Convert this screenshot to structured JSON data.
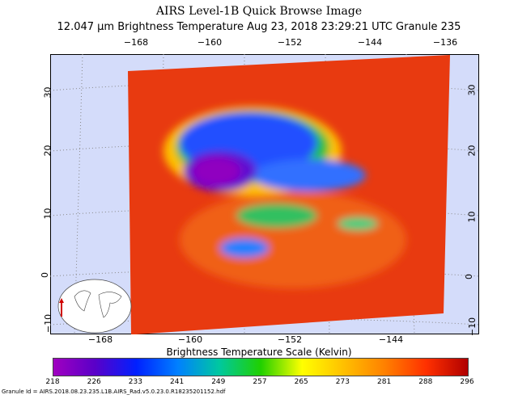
{
  "title": "AIRS Level-1B Quick Browse Image",
  "subtitle": "12.047 µm Brightness Temperature    Aug 23, 2018 23:29:21 UTC   Granule 235",
  "map": {
    "top_lon_labels": [
      "−168",
      "−160",
      "−152",
      "−144",
      "−136"
    ],
    "bottom_lon_labels": [
      "−168",
      "−160",
      "−152",
      "−144"
    ],
    "left_lat_labels": [
      "30",
      "20",
      "10",
      "0",
      "−10"
    ],
    "right_lat_labels": [
      "30",
      "20",
      "10",
      "0",
      "−10"
    ],
    "background_color": "#d4dcfa"
  },
  "colorbar": {
    "title": "Brightness Temperature Scale (Kelvin)",
    "labels": [
      "218",
      "226",
      "233",
      "241",
      "249",
      "257",
      "265",
      "273",
      "281",
      "288",
      "296"
    ],
    "colors": [
      "#a000c0",
      "#5a00c8",
      "#0020ff",
      "#0080ff",
      "#00c8a0",
      "#20d000",
      "#ffff00",
      "#ffc000",
      "#ff8000",
      "#ff3000",
      "#b00000"
    ]
  },
  "granule_id": "Granule Id = AIRS.2018.08.23.235.L1B.AIRS_Rad.v5.0.23.0.R18235201152.hdf"
}
